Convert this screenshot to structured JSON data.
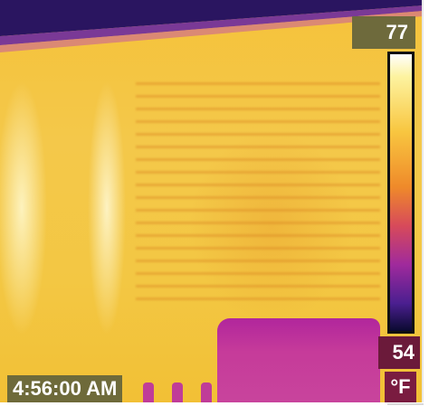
{
  "thermal_image": {
    "scale_max": "77",
    "scale_min": "54",
    "unit": "°F",
    "timestamp": "4:56:00 AM",
    "palette": [
      "#fefefe",
      "#fdf3a0",
      "#f8c640",
      "#ef8a2a",
      "#d74a5a",
      "#a02a9c",
      "#4b1f90",
      "#0a0a30"
    ]
  }
}
